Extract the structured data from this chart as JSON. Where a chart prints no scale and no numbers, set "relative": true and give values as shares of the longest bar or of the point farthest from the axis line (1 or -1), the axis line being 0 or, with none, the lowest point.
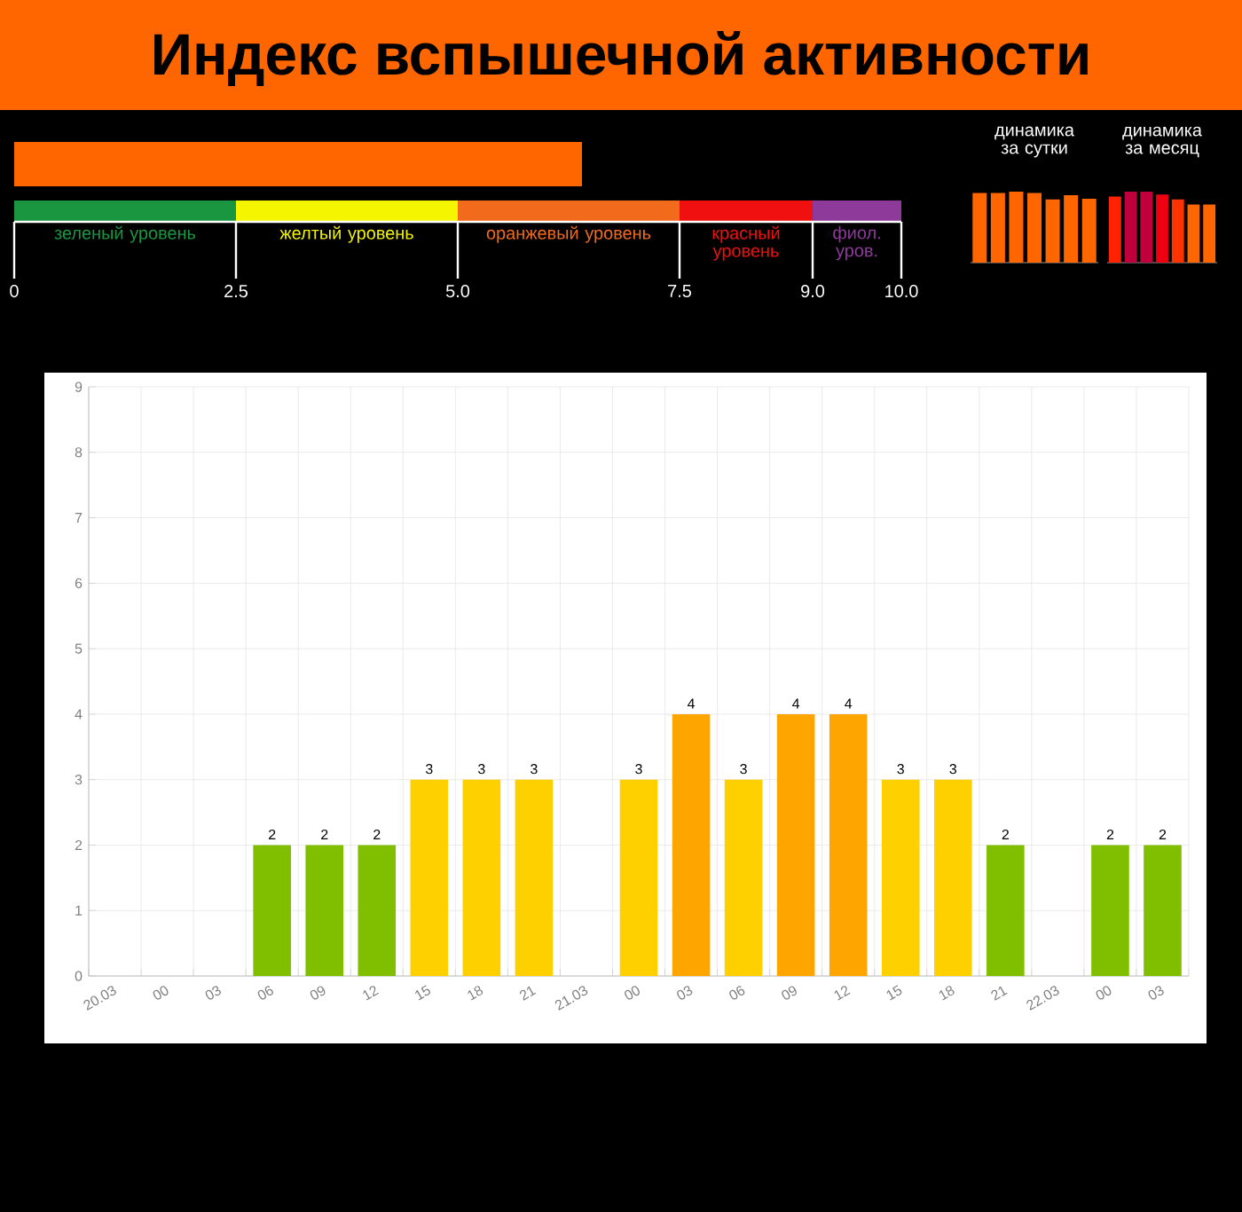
{
  "chart_data": [
    {
      "type": "bar",
      "orientation": "horizontal",
      "title": "Индекс вспышечной активности",
      "categories": [
        null
      ],
      "values": [
        6.4
      ],
      "color": "#ff6600",
      "xlim": [
        0,
        10
      ],
      "xticks": [
        0,
        2.5,
        {
          "value": 5,
          "label": "5.0"
        },
        7.5,
        {
          "value": 9,
          "label": "9.0"
        },
        {
          "value": 10,
          "label": "10.0"
        }
      ],
      "annotations": [
        "зеленый уровень",
        "желтый уровень",
        "оранжевый уровень",
        "красный уровень",
        "фиол. уров."
      ]
    },
    {
      "type": "bar",
      "relative": true,
      "title": "динамика за сутки",
      "categories": [
        null,
        null,
        null,
        null,
        null,
        null,
        null
      ],
      "values": [
        0.98,
        0.98,
        1,
        0.98,
        0.89,
        0.95,
        0.9
      ],
      "color": "#ff6600"
    },
    {
      "type": "bar",
      "relative": true,
      "title": "динамика за месяц",
      "categories": [
        null,
        null,
        null,
        null,
        null,
        null,
        null
      ],
      "values": [
        0.93,
        1,
        1,
        0.96,
        0.89,
        0.82,
        0.82
      ],
      "colors": [
        "#ff2200",
        "#c0003c",
        "#c0003c",
        "#ee0011",
        "#ff3300",
        "#ff6600",
        "#ff6600"
      ]
    },
    {
      "type": "bar",
      "categories": [
        "20.03",
        "00",
        "03",
        "06",
        "09",
        "12",
        "15",
        "18",
        "21",
        "21.03",
        "00",
        "03",
        "06",
        "09",
        "12",
        "15",
        "18",
        "21",
        "22.03",
        "00",
        "03"
      ],
      "values": [
        null,
        null,
        null,
        2,
        2,
        2,
        3,
        3,
        3,
        null,
        3,
        4,
        3,
        4,
        4,
        3,
        3,
        2,
        null,
        2,
        2
      ],
      "colors": [
        "#7fbf00",
        "#7fbf00",
        "#7fbf00",
        "#7fbf00",
        "#7fbf00",
        "#7fbf00",
        "#ffd000",
        "#ffd000",
        "#ffd000",
        "#ffd000",
        "#ffd000",
        "#ffa500",
        "#ffd000",
        "#ffa500",
        "#ffa500",
        "#ffd000",
        "#ffd000",
        "#7fbf00",
        "#7fbf00",
        "#7fbf00",
        "#7fbf00"
      ],
      "ylim": [
        0,
        9
      ],
      "yticks": [
        0,
        1,
        2,
        3,
        4,
        5,
        6,
        7,
        8,
        9
      ],
      "grid": true,
      "data_labels": true
    }
  ]
}
